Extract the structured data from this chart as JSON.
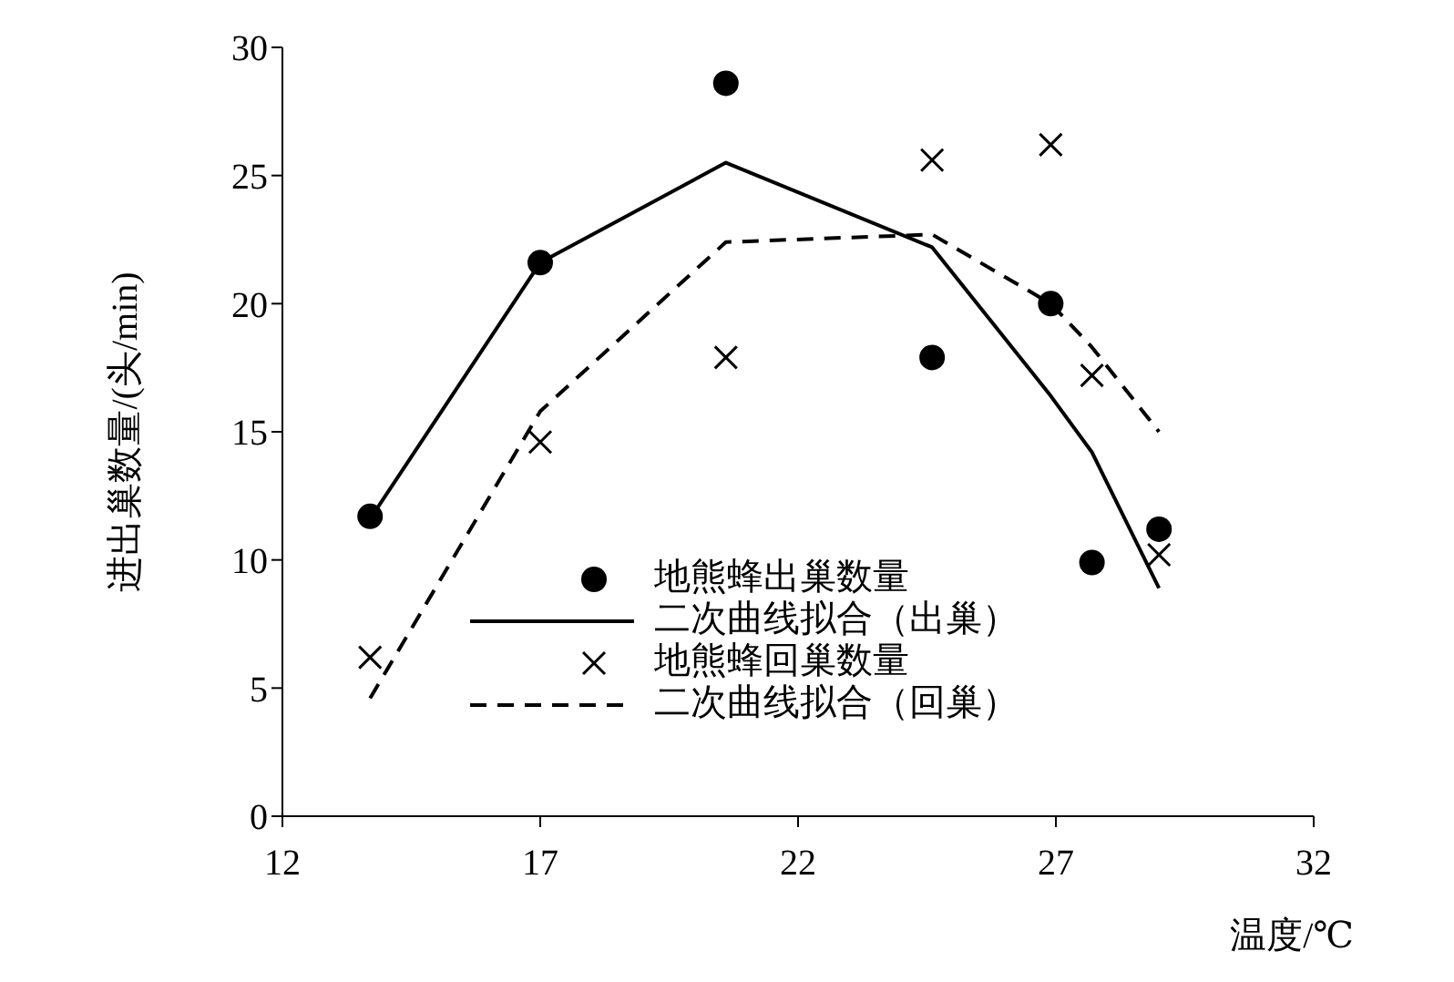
{
  "chart_data": {
    "type": "scatter",
    "xlabel": "温度/℃",
    "ylabel": "进出巢数量/(头/min)",
    "xlim": [
      12,
      32
    ],
    "xticks": [
      12,
      17,
      22,
      27,
      32
    ],
    "ylim": [
      0,
      30
    ],
    "yticks": [
      0,
      5,
      10,
      15,
      20,
      25,
      30
    ],
    "grid": false,
    "legend": "bottom",
    "series": [
      {
        "name": "地熊蜂出巢数量",
        "type": "scatter",
        "marker": "circle",
        "color": "#000000",
        "x": [
          13.7,
          17.0,
          20.6,
          24.6,
          26.9,
          27.7,
          29.0
        ],
        "values": [
          11.7,
          21.6,
          28.6,
          17.9,
          20.0,
          9.9,
          11.2
        ]
      },
      {
        "name": "二次曲线拟合（出巢）",
        "type": "line",
        "line_style": "solid",
        "color": "#000000",
        "x": [
          13.7,
          17.0,
          20.6,
          24.6,
          26.9,
          27.7,
          29.0
        ],
        "values": [
          11.6,
          21.6,
          25.5,
          22.2,
          16.4,
          14.2,
          8.9
        ]
      },
      {
        "name": "地熊蜂回巢数量",
        "type": "scatter",
        "marker": "cross",
        "color": "#000000",
        "x": [
          13.7,
          17.0,
          20.6,
          24.6,
          26.9,
          27.7,
          29.0
        ],
        "values": [
          6.2,
          14.6,
          17.9,
          25.6,
          26.2,
          17.2,
          10.2
        ]
      },
      {
        "name": "二次曲线拟合（回巢）",
        "type": "line",
        "line_style": "dashed",
        "color": "#000000",
        "x": [
          13.7,
          17.0,
          20.6,
          24.6,
          26.9,
          27.7,
          29.0
        ],
        "values": [
          4.6,
          15.8,
          22.4,
          22.7,
          20.0,
          18.3,
          15.0
        ]
      }
    ]
  }
}
